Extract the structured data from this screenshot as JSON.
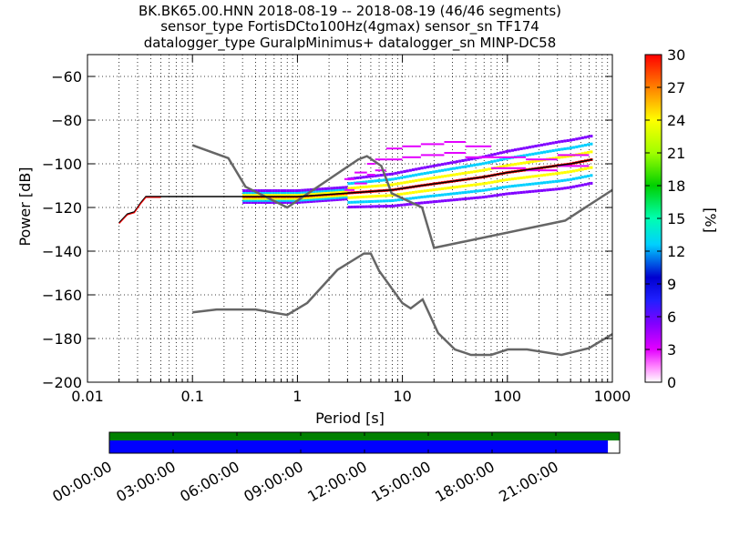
{
  "chart_data": {
    "type": "line",
    "title_lines": [
      "BK.BK65.00.HNN   2018-08-19 -- 2018-08-19  (46/46 segments)",
      "sensor_type FortisDCto100Hz(4gmax) sensor_sn TF174",
      "datalogger_type GuralpMinimus+ datalogger_sn MINP-DC58"
    ],
    "xlabel": "Period [s]",
    "ylabel": "Power [dB]",
    "xscale": "log",
    "xlim": [
      0.01,
      1000
    ],
    "ylim": [
      -200,
      -50
    ],
    "x_tick_labels": [
      "0.01",
      "0.1",
      "1",
      "10",
      "100",
      "1000"
    ],
    "y_tick_labels": [
      "−60",
      "−80",
      "−100",
      "−120",
      "−140",
      "−160",
      "−180",
      "−200"
    ],
    "y_tick_values": [
      -60,
      -80,
      -100,
      -120,
      -140,
      -160,
      -180,
      -200
    ],
    "grid": true,
    "colorbar": {
      "label": "[%]",
      "range": [
        0,
        30
      ],
      "tick_labels": [
        "0",
        "3",
        "6",
        "9",
        "12",
        "15",
        "18",
        "21",
        "24",
        "27",
        "30"
      ],
      "tick_values": [
        0,
        3,
        6,
        9,
        12,
        15,
        18,
        21,
        24,
        27,
        30
      ],
      "colormap": "pqlx"
    },
    "series": [
      {
        "role": "new high noise model",
        "color": "#666666",
        "x": [
          0.1,
          0.22,
          0.32,
          0.8,
          3.8,
          4.6,
          6.3,
          7.9,
          15.4,
          20,
          354.8,
          1000
        ],
        "y": [
          -91.5,
          -97.4,
          -110.5,
          -120,
          -98,
          -96.5,
          -101,
          -113.5,
          -120,
          -138.5,
          -126,
          -112
        ]
      },
      {
        "role": "new low noise model",
        "color": "#666666",
        "x": [
          0.1,
          0.17,
          0.4,
          0.8,
          1.24,
          2.4,
          4.3,
          5,
          6,
          10,
          12,
          15.6,
          21.9,
          31.6,
          45,
          70,
          101,
          154,
          328,
          600,
          1000
        ],
        "y": [
          -168,
          -166.7,
          -166.7,
          -169.2,
          -163.7,
          -148.6,
          -141.1,
          -141.1,
          -149,
          -163.8,
          -166.2,
          -162.1,
          -177.5,
          -185,
          -187.5,
          -187.5,
          -185,
          -185,
          -187.5,
          -184.4,
          -178
        ]
      },
      {
        "role": "mode",
        "color": "#000000",
        "x": [
          0.02,
          0.024,
          0.028,
          0.032,
          0.036,
          0.05,
          0.1,
          0.3,
          1,
          2,
          4,
          8,
          15,
          30,
          60,
          100,
          200,
          400,
          650
        ],
        "y": [
          -127,
          -123,
          -122,
          -118,
          -115,
          -115,
          -115,
          -115,
          -115,
          -114,
          -113,
          -112,
          -110,
          -108,
          -106,
          -104,
          -102,
          -100,
          -98
        ]
      }
    ],
    "availability": {
      "time_labels": [
        "00:00:00",
        "03:00:00",
        "06:00:00",
        "09:00:00",
        "12:00:00",
        "15:00:00",
        "18:00:00",
        "21:00:00"
      ],
      "data_coverage": 0.977,
      "top_bar_color": "#008000",
      "bottom_bar_color": "#0000ff"
    }
  }
}
